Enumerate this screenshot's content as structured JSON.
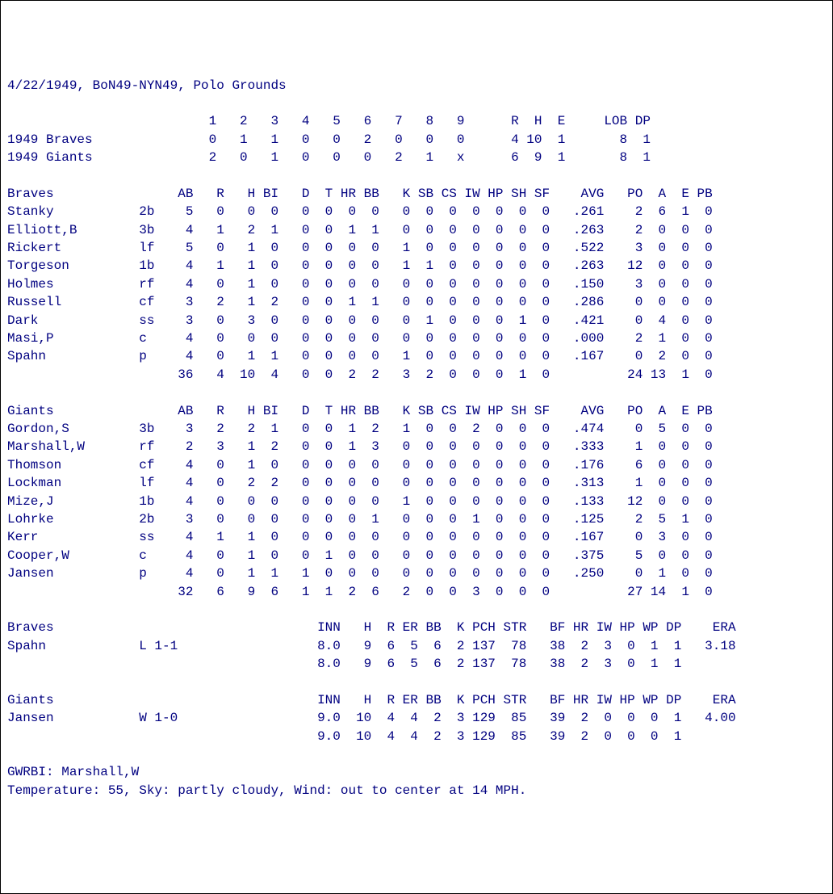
{
  "game": {
    "date": "4/22/1949",
    "code": "BoN49-NYN49",
    "venue": "Polo Grounds",
    "away_name": "1949 Braves",
    "home_name": "1949 Giants",
    "gwrbi": "Marshall,W",
    "weather": "Temperature: 55, Sky: partly cloudy, Wind: out to center at 14 MPH."
  },
  "linescore": {
    "innings_hdr": [
      "1",
      "2",
      "3",
      "4",
      "5",
      "6",
      "7",
      "8",
      "9"
    ],
    "rhelob_hdr": [
      "R",
      "H",
      "E",
      "LOB",
      "DP"
    ],
    "away": {
      "innings": [
        "0",
        "1",
        "1",
        "0",
        "0",
        "2",
        "0",
        "0",
        "0"
      ],
      "R": "4",
      "H": "10",
      "E": "1",
      "LOB": "8",
      "DP": "1"
    },
    "home": {
      "innings": [
        "2",
        "0",
        "1",
        "0",
        "0",
        "0",
        "2",
        "1",
        "x"
      ],
      "R": "6",
      "H": "9",
      "E": "1",
      "LOB": "8",
      "DP": "1"
    }
  },
  "bat_hdr": [
    "AB",
    "R",
    "H",
    "BI",
    "D",
    "T",
    "HR",
    "BB",
    "K",
    "SB",
    "CS",
    "IW",
    "HP",
    "SH",
    "SF",
    "AVG",
    "PO",
    "A",
    "E",
    "PB"
  ],
  "away_bat": {
    "team": "Braves",
    "players": [
      {
        "name": "Stanky",
        "pos": "2b",
        "s": [
          "5",
          "0",
          "0",
          "0",
          "0",
          "0",
          "0",
          "0",
          "0",
          "0",
          "0",
          "0",
          "0",
          "0",
          "0",
          ".261",
          "2",
          "6",
          "1",
          "0"
        ]
      },
      {
        "name": "Elliott,B",
        "pos": "3b",
        "s": [
          "4",
          "1",
          "2",
          "1",
          "0",
          "0",
          "1",
          "1",
          "0",
          "0",
          "0",
          "0",
          "0",
          "0",
          "0",
          ".263",
          "2",
          "0",
          "0",
          "0"
        ]
      },
      {
        "name": "Rickert",
        "pos": "lf",
        "s": [
          "5",
          "0",
          "1",
          "0",
          "0",
          "0",
          "0",
          "0",
          "1",
          "0",
          "0",
          "0",
          "0",
          "0",
          "0",
          ".522",
          "3",
          "0",
          "0",
          "0"
        ]
      },
      {
        "name": "Torgeson",
        "pos": "1b",
        "s": [
          "4",
          "1",
          "1",
          "0",
          "0",
          "0",
          "0",
          "0",
          "1",
          "1",
          "0",
          "0",
          "0",
          "0",
          "0",
          ".263",
          "12",
          "0",
          "0",
          "0"
        ]
      },
      {
        "name": "Holmes",
        "pos": "rf",
        "s": [
          "4",
          "0",
          "1",
          "0",
          "0",
          "0",
          "0",
          "0",
          "0",
          "0",
          "0",
          "0",
          "0",
          "0",
          "0",
          ".150",
          "3",
          "0",
          "0",
          "0"
        ]
      },
      {
        "name": "Russell",
        "pos": "cf",
        "s": [
          "3",
          "2",
          "1",
          "2",
          "0",
          "0",
          "1",
          "1",
          "0",
          "0",
          "0",
          "0",
          "0",
          "0",
          "0",
          ".286",
          "0",
          "0",
          "0",
          "0"
        ]
      },
      {
        "name": "Dark",
        "pos": "ss",
        "s": [
          "3",
          "0",
          "3",
          "0",
          "0",
          "0",
          "0",
          "0",
          "0",
          "1",
          "0",
          "0",
          "0",
          "1",
          "0",
          ".421",
          "0",
          "4",
          "0",
          "0"
        ]
      },
      {
        "name": "Masi,P",
        "pos": "c",
        "s": [
          "4",
          "0",
          "0",
          "0",
          "0",
          "0",
          "0",
          "0",
          "0",
          "0",
          "0",
          "0",
          "0",
          "0",
          "0",
          ".000",
          "2",
          "1",
          "0",
          "0"
        ]
      },
      {
        "name": "Spahn",
        "pos": "p",
        "s": [
          "4",
          "0",
          "1",
          "1",
          "0",
          "0",
          "0",
          "0",
          "1",
          "0",
          "0",
          "0",
          "0",
          "0",
          "0",
          ".167",
          "0",
          "2",
          "0",
          "0"
        ]
      }
    ],
    "totals": [
      "36",
      "4",
      "10",
      "4",
      "0",
      "0",
      "2",
      "2",
      "3",
      "2",
      "0",
      "0",
      "0",
      "1",
      "0",
      "",
      "24",
      "13",
      "1",
      "0"
    ]
  },
  "home_bat": {
    "team": "Giants",
    "players": [
      {
        "name": "Gordon,S",
        "pos": "3b",
        "s": [
          "3",
          "2",
          "2",
          "1",
          "0",
          "0",
          "1",
          "2",
          "1",
          "0",
          "0",
          "2",
          "0",
          "0",
          "0",
          ".474",
          "0",
          "5",
          "0",
          "0"
        ]
      },
      {
        "name": "Marshall,W",
        "pos": "rf",
        "s": [
          "2",
          "3",
          "1",
          "2",
          "0",
          "0",
          "1",
          "3",
          "0",
          "0",
          "0",
          "0",
          "0",
          "0",
          "0",
          ".333",
          "1",
          "0",
          "0",
          "0"
        ]
      },
      {
        "name": "Thomson",
        "pos": "cf",
        "s": [
          "4",
          "0",
          "1",
          "0",
          "0",
          "0",
          "0",
          "0",
          "0",
          "0",
          "0",
          "0",
          "0",
          "0",
          "0",
          ".176",
          "6",
          "0",
          "0",
          "0"
        ]
      },
      {
        "name": "Lockman",
        "pos": "lf",
        "s": [
          "4",
          "0",
          "2",
          "2",
          "0",
          "0",
          "0",
          "0",
          "0",
          "0",
          "0",
          "0",
          "0",
          "0",
          "0",
          ".313",
          "1",
          "0",
          "0",
          "0"
        ]
      },
      {
        "name": "Mize,J",
        "pos": "1b",
        "s": [
          "4",
          "0",
          "0",
          "0",
          "0",
          "0",
          "0",
          "0",
          "1",
          "0",
          "0",
          "0",
          "0",
          "0",
          "0",
          ".133",
          "12",
          "0",
          "0",
          "0"
        ]
      },
      {
        "name": "Lohrke",
        "pos": "2b",
        "s": [
          "3",
          "0",
          "0",
          "0",
          "0",
          "0",
          "0",
          "1",
          "0",
          "0",
          "0",
          "1",
          "0",
          "0",
          "0",
          ".125",
          "2",
          "5",
          "1",
          "0"
        ]
      },
      {
        "name": "Kerr",
        "pos": "ss",
        "s": [
          "4",
          "1",
          "1",
          "0",
          "0",
          "0",
          "0",
          "0",
          "0",
          "0",
          "0",
          "0",
          "0",
          "0",
          "0",
          ".167",
          "0",
          "3",
          "0",
          "0"
        ]
      },
      {
        "name": "Cooper,W",
        "pos": "c",
        "s": [
          "4",
          "0",
          "1",
          "0",
          "0",
          "1",
          "0",
          "0",
          "0",
          "0",
          "0",
          "0",
          "0",
          "0",
          "0",
          ".375",
          "5",
          "0",
          "0",
          "0"
        ]
      },
      {
        "name": "Jansen",
        "pos": "p",
        "s": [
          "4",
          "0",
          "1",
          "1",
          "1",
          "0",
          "0",
          "0",
          "0",
          "0",
          "0",
          "0",
          "0",
          "0",
          "0",
          ".250",
          "0",
          "1",
          "0",
          "0"
        ]
      }
    ],
    "totals": [
      "32",
      "6",
      "9",
      "6",
      "1",
      "1",
      "2",
      "6",
      "2",
      "0",
      "0",
      "3",
      "0",
      "0",
      "0",
      "",
      "27",
      "14",
      "1",
      "0"
    ]
  },
  "pit_hdr": [
    "INN",
    "H",
    "R",
    "ER",
    "BB",
    "K",
    "PCH",
    "STR",
    "BF",
    "HR",
    "IW",
    "HP",
    "WP",
    "DP",
    "ERA"
  ],
  "away_pit": {
    "team": "Braves",
    "pitchers": [
      {
        "name": "Spahn",
        "dec": "L 1-1",
        "s": [
          "8.0",
          "9",
          "6",
          "5",
          "6",
          "2",
          "137",
          "78",
          "38",
          "2",
          "3",
          "0",
          "1",
          "1",
          "3.18"
        ]
      }
    ],
    "totals": [
      "8.0",
      "9",
      "6",
      "5",
      "6",
      "2",
      "137",
      "78",
      "38",
      "2",
      "3",
      "0",
      "1",
      "1",
      ""
    ]
  },
  "home_pit": {
    "team": "Giants",
    "pitchers": [
      {
        "name": "Jansen",
        "dec": "W 1-0",
        "s": [
          "9.0",
          "10",
          "4",
          "4",
          "2",
          "3",
          "129",
          "85",
          "39",
          "2",
          "0",
          "0",
          "0",
          "1",
          "4.00"
        ]
      }
    ],
    "totals": [
      "9.0",
      "10",
      "4",
      "4",
      "2",
      "3",
      "129",
      "85",
      "39",
      "2",
      "0",
      "0",
      "0",
      "1",
      ""
    ]
  },
  "style": {
    "font_family": "Courier New",
    "font_size_pt": 12,
    "text_color": "#000080",
    "background_color": "#ffffff"
  }
}
